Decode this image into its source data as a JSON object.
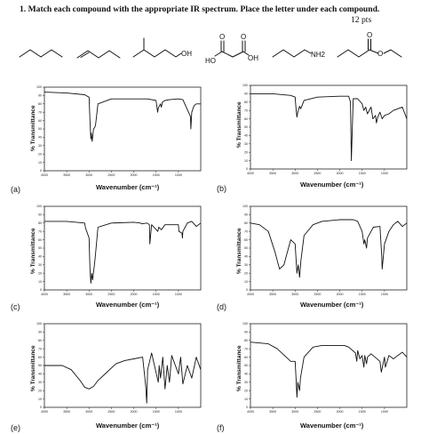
{
  "question": {
    "title": "1.  Match each compound with the appropriate IR spectrum. Place the letter under each compound.",
    "points": "12 pts"
  },
  "structures": [
    {
      "name": "pentane",
      "labels": []
    },
    {
      "name": "1-pentene",
      "labels": []
    },
    {
      "name": "3-methyl-1-pentanol",
      "labels": [
        "OH"
      ]
    },
    {
      "name": "malonic-acid",
      "labels": [
        "O",
        "O",
        "HO",
        "OH"
      ]
    },
    {
      "name": "butylamine",
      "labels": [
        "NH2"
      ]
    },
    {
      "name": "ethyl-butanoate",
      "labels": [
        "O",
        "O"
      ]
    }
  ],
  "axis_text": {
    "ylabel": "% Transmittance",
    "xlabel": "Wavenumber (cm⁻¹)"
  },
  "chart_data": [
    {
      "id": "a",
      "label": "(a)",
      "type": "line",
      "yticks": [
        0,
        10,
        20,
        30,
        40,
        50,
        60,
        70,
        80,
        90,
        100
      ],
      "xticks": [
        4000,
        3500,
        3000,
        2500,
        2000,
        1500,
        1000
      ],
      "xlim": [
        4000,
        500
      ],
      "ylim": [
        0,
        100
      ],
      "series": [
        {
          "x": [
            4000,
            3500,
            3100,
            3000,
            2980,
            2960,
            2950,
            2930,
            2900,
            2870,
            2855,
            2800,
            2500,
            2000,
            1700,
            1600,
            1500,
            1465,
            1450,
            1400,
            1380,
            1360,
            1300,
            1200,
            1000,
            900,
            730,
            720,
            700,
            650,
            600,
            500
          ],
          "y": [
            94,
            93,
            91,
            88,
            60,
            38,
            45,
            35,
            50,
            52,
            55,
            80,
            86,
            86,
            86,
            85,
            84,
            70,
            75,
            80,
            76,
            82,
            84,
            85,
            86,
            85,
            65,
            50,
            70,
            78,
            80,
            80
          ]
        }
      ]
    },
    {
      "id": "b",
      "label": "(b)",
      "type": "line",
      "yticks": [
        0,
        10,
        20,
        30,
        40,
        50,
        60,
        70,
        80,
        90,
        100
      ],
      "xticks": [
        4000,
        3500,
        3000,
        2500,
        2000,
        1500,
        1000
      ],
      "xlim": [
        4000,
        500
      ],
      "ylim": [
        0,
        100
      ],
      "series": [
        {
          "x": [
            4000,
            3500,
            3100,
            3000,
            2980,
            2960,
            2940,
            2900,
            2875,
            2800,
            2500,
            2000,
            1800,
            1760,
            1740,
            1720,
            1700,
            1600,
            1500,
            1460,
            1420,
            1380,
            1300,
            1260,
            1200,
            1180,
            1150,
            1100,
            1050,
            1000,
            900,
            800,
            700,
            600,
            500
          ],
          "y": [
            90,
            90,
            88,
            86,
            72,
            62,
            68,
            75,
            72,
            82,
            86,
            87,
            87,
            80,
            10,
            50,
            84,
            84,
            78,
            70,
            74,
            66,
            74,
            60,
            64,
            55,
            62,
            68,
            60,
            64,
            66,
            70,
            72,
            74,
            60
          ]
        }
      ]
    },
    {
      "id": "c",
      "label": "(c)",
      "type": "line",
      "yticks": [
        0,
        10,
        20,
        30,
        40,
        50,
        60,
        70,
        80,
        90,
        100
      ],
      "xticks": [
        4000,
        3500,
        3000,
        2500,
        2000,
        1500,
        1000
      ],
      "xlim": [
        4000,
        500
      ],
      "ylim": [
        0,
        100
      ],
      "series": [
        {
          "x": [
            4000,
            3500,
            3100,
            3080,
            3000,
            2980,
            2960,
            2940,
            2920,
            2880,
            2860,
            2800,
            2500,
            2000,
            1850,
            1820,
            1700,
            1650,
            1640,
            1600,
            1460,
            1440,
            1380,
            1300,
            1000,
            990,
            920,
            910,
            900,
            800,
            700,
            600,
            500
          ],
          "y": [
            82,
            82,
            80,
            74,
            62,
            25,
            8,
            20,
            12,
            30,
            40,
            75,
            80,
            81,
            80,
            79,
            80,
            78,
            55,
            78,
            70,
            75,
            72,
            78,
            78,
            70,
            68,
            62,
            70,
            80,
            82,
            76,
            80
          ]
        }
      ]
    },
    {
      "id": "d",
      "label": "(d)",
      "type": "line",
      "yticks": [
        0,
        10,
        20,
        30,
        40,
        50,
        60,
        70,
        80,
        90,
        100
      ],
      "xticks": [
        4000,
        3500,
        3000,
        2500,
        2000,
        1500,
        1000
      ],
      "xlim": [
        4000,
        500
      ],
      "ylim": [
        0,
        100
      ],
      "series": [
        {
          "x": [
            4000,
            3800,
            3600,
            3450,
            3350,
            3250,
            3100,
            3000,
            2960,
            2930,
            2900,
            2870,
            2800,
            2600,
            2400,
            2000,
            1700,
            1600,
            1500,
            1460,
            1440,
            1400,
            1380,
            1300,
            1250,
            1100,
            1060,
            1050,
            1000,
            900,
            800,
            700,
            600,
            500
          ],
          "y": [
            80,
            78,
            70,
            45,
            25,
            30,
            60,
            55,
            20,
            30,
            15,
            35,
            65,
            78,
            82,
            84,
            84,
            82,
            70,
            55,
            60,
            50,
            62,
            70,
            75,
            76,
            40,
            25,
            55,
            70,
            78,
            82,
            76,
            80
          ]
        }
      ]
    },
    {
      "id": "e",
      "label": "(e)",
      "type": "line",
      "yticks": [
        0,
        10,
        20,
        30,
        40,
        50,
        60,
        70,
        80,
        90,
        100
      ],
      "xticks": [
        4000,
        3500,
        3000,
        2500,
        2000,
        1500,
        1000
      ],
      "xlim": [
        4000,
        500
      ],
      "ylim": [
        0,
        100
      ],
      "series": [
        {
          "x": [
            4000,
            3800,
            3600,
            3400,
            3200,
            3100,
            3000,
            2900,
            2800,
            2600,
            2400,
            2200,
            2000,
            1800,
            1730,
            1710,
            1690,
            1600,
            1450,
            1430,
            1400,
            1350,
            1300,
            1250,
            1200,
            1150,
            1000,
            950,
            900,
            800,
            700,
            600,
            500
          ],
          "y": [
            50,
            50,
            50,
            45,
            32,
            24,
            22,
            25,
            32,
            42,
            52,
            56,
            58,
            60,
            25,
            5,
            45,
            65,
            30,
            50,
            35,
            60,
            22,
            50,
            30,
            62,
            40,
            60,
            28,
            50,
            35,
            60,
            45
          ]
        }
      ]
    },
    {
      "id": "f",
      "label": "(f)",
      "type": "line",
      "yticks": [
        0,
        10,
        20,
        30,
        40,
        50,
        60,
        70,
        80,
        90,
        100
      ],
      "xticks": [
        4000,
        3500,
        3000,
        2500,
        2000,
        1500,
        1000
      ],
      "xlim": [
        4000,
        500
      ],
      "ylim": [
        0,
        100
      ],
      "series": [
        {
          "x": [
            4000,
            3600,
            3400,
            3200,
            3100,
            3000,
            2980,
            2960,
            2940,
            2900,
            2880,
            2800,
            2600,
            2400,
            2200,
            2000,
            1900,
            1800,
            1650,
            1620,
            1600,
            1550,
            1500,
            1460,
            1440,
            1400,
            1380,
            1300,
            1100,
            1070,
            1000,
            980,
            900,
            800,
            700,
            600,
            500
          ],
          "y": [
            78,
            76,
            70,
            60,
            55,
            55,
            35,
            12,
            30,
            20,
            35,
            60,
            72,
            74,
            74,
            74,
            74,
            72,
            65,
            55,
            68,
            58,
            62,
            48,
            62,
            52,
            60,
            64,
            55,
            42,
            60,
            48,
            62,
            58,
            62,
            66,
            60
          ]
        }
      ]
    }
  ]
}
